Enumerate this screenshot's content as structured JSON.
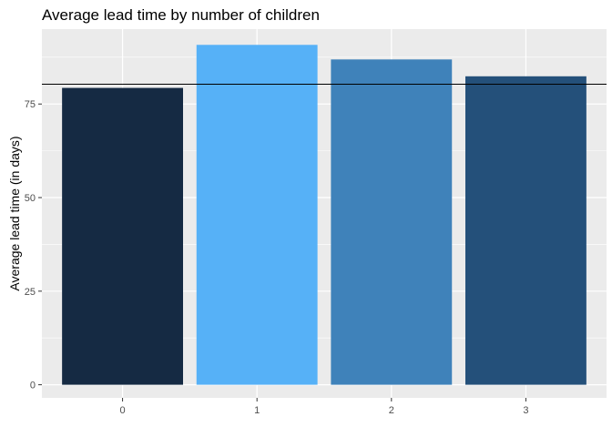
{
  "chart_data": {
    "type": "bar",
    "title": "Average lead time by number of children",
    "xlabel": "",
    "ylabel": "Average lead time (in days)",
    "categories": [
      "0",
      "1",
      "2",
      "3"
    ],
    "values": [
      79.3,
      90.8,
      86.9,
      82.4
    ],
    "bar_colors": [
      "#152a43",
      "#56b1f7",
      "#3f82ba",
      "#24507a"
    ],
    "reference_line": 80.3,
    "ylim": [
      -3.5,
      95
    ],
    "yticks": [
      0,
      25,
      50,
      75
    ],
    "ytick_labels": [
      "0",
      "25",
      "50",
      "75"
    ],
    "grid": true,
    "legend": "none",
    "panel_background": "#ebebeb"
  }
}
